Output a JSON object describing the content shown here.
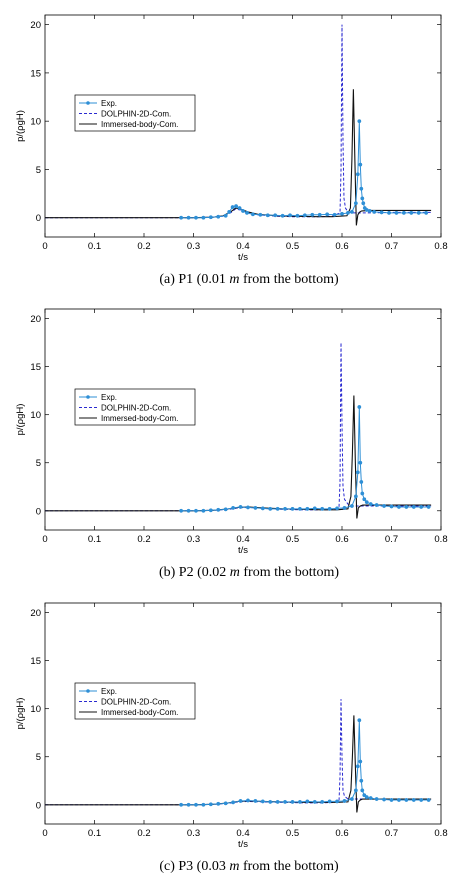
{
  "chart_data": [
    {
      "type": "line",
      "caption": "(a) P1 (0.01 m from the bottom)",
      "caption_parts": [
        "(a) P1 (0.01 ",
        "m",
        " from the bottom)"
      ],
      "xlabel": "t/s",
      "ylabel": "p/(ρgH)",
      "xlim": [
        0,
        0.8
      ],
      "ylim": [
        -2,
        21
      ],
      "xticks": [
        0,
        0.1,
        0.2,
        0.3,
        0.4,
        0.5,
        0.6,
        0.7,
        0.8
      ],
      "yticks": [
        0,
        5,
        10,
        15,
        20
      ],
      "grid": false,
      "legend": "upper-left",
      "series": [
        {
          "name": "Exp.",
          "style": "line-marker",
          "color": "#2e8fd6",
          "x": [
            0.275,
            0.29,
            0.305,
            0.32,
            0.335,
            0.35,
            0.365,
            0.372,
            0.379,
            0.386,
            0.393,
            0.4,
            0.408,
            0.42,
            0.435,
            0.45,
            0.465,
            0.48,
            0.495,
            0.51,
            0.525,
            0.54,
            0.555,
            0.57,
            0.585,
            0.6,
            0.612,
            0.62,
            0.628,
            0.632,
            0.635,
            0.637,
            0.639,
            0.641,
            0.643,
            0.646,
            0.65,
            0.656,
            0.665,
            0.68,
            0.695,
            0.71,
            0.725,
            0.74,
            0.755,
            0.77
          ],
          "y": [
            0,
            0,
            0,
            0,
            0.05,
            0.1,
            0.2,
            0.6,
            1.1,
            1.2,
            1.0,
            0.7,
            0.5,
            0.35,
            0.3,
            0.25,
            0.25,
            0.2,
            0.25,
            0.2,
            0.25,
            0.3,
            0.3,
            0.35,
            0.3,
            0.4,
            0.5,
            0.6,
            1.5,
            4.5,
            10.0,
            5.5,
            3.0,
            2.0,
            1.5,
            1.0,
            0.8,
            0.7,
            0.6,
            0.55,
            0.5,
            0.5,
            0.5,
            0.5,
            0.5,
            0.5
          ]
        },
        {
          "name": "DOLPHIN-2D-Com.",
          "style": "dashed",
          "color": "#2a2ad0",
          "x": [
            0.0,
            0.3,
            0.34,
            0.36,
            0.375,
            0.385,
            0.395,
            0.41,
            0.43,
            0.47,
            0.5,
            0.55,
            0.58,
            0.596,
            0.598,
            0.6,
            0.602,
            0.604,
            0.607,
            0.612,
            0.62,
            0.64,
            0.66,
            0.7,
            0.74,
            0.78
          ],
          "y": [
            0,
            0,
            0.05,
            0.15,
            0.5,
            0.9,
            0.8,
            0.5,
            0.3,
            0.15,
            0.1,
            0.1,
            0.15,
            0.5,
            5.0,
            20.0,
            8.0,
            2.0,
            1.0,
            0.6,
            0.5,
            0.5,
            0.5,
            0.55,
            0.55,
            0.55
          ]
        },
        {
          "name": "Immersed-body-Com.",
          "style": "solid",
          "color": "#111111",
          "x": [
            0.0,
            0.3,
            0.34,
            0.36,
            0.375,
            0.385,
            0.395,
            0.41,
            0.43,
            0.47,
            0.5,
            0.55,
            0.58,
            0.61,
            0.617,
            0.62,
            0.623,
            0.626,
            0.629,
            0.632,
            0.636,
            0.64,
            0.66,
            0.7,
            0.74,
            0.78
          ],
          "y": [
            0,
            0,
            0.05,
            0.2,
            0.6,
            1.0,
            0.9,
            0.6,
            0.35,
            0.2,
            0.15,
            0.1,
            0.1,
            0.2,
            1.0,
            6.0,
            13.3,
            6.0,
            -0.8,
            0.3,
            0.6,
            0.7,
            0.75,
            0.75,
            0.75,
            0.75
          ]
        }
      ]
    },
    {
      "type": "line",
      "caption": "(b) P2 (0.02 m from the bottom)",
      "caption_parts": [
        "(b) P2 (0.02 ",
        "m",
        " from the bottom)"
      ],
      "xlabel": "t/s",
      "ylabel": "p/(ρgH)",
      "xlim": [
        0,
        0.8
      ],
      "ylim": [
        -2,
        21
      ],
      "xticks": [
        0,
        0.1,
        0.2,
        0.3,
        0.4,
        0.5,
        0.6,
        0.7,
        0.8
      ],
      "yticks": [
        0,
        5,
        10,
        15,
        20
      ],
      "grid": false,
      "legend": "upper-left",
      "series": [
        {
          "name": "Exp.",
          "style": "line-marker",
          "color": "#2e8fd6",
          "x": [
            0.275,
            0.29,
            0.305,
            0.32,
            0.335,
            0.35,
            0.365,
            0.38,
            0.395,
            0.41,
            0.425,
            0.44,
            0.455,
            0.47,
            0.485,
            0.5,
            0.515,
            0.53,
            0.545,
            0.56,
            0.575,
            0.59,
            0.605,
            0.62,
            0.628,
            0.632,
            0.635,
            0.637,
            0.639,
            0.641,
            0.645,
            0.65,
            0.658,
            0.67,
            0.685,
            0.7,
            0.715,
            0.73,
            0.745,
            0.76,
            0.775
          ],
          "y": [
            0,
            0,
            0,
            0,
            0.05,
            0.1,
            0.15,
            0.3,
            0.4,
            0.35,
            0.3,
            0.25,
            0.2,
            0.2,
            0.2,
            0.2,
            0.2,
            0.2,
            0.25,
            0.2,
            0.2,
            0.25,
            0.3,
            0.5,
            1.5,
            4.0,
            10.8,
            5.0,
            3.0,
            1.8,
            1.2,
            0.9,
            0.7,
            0.6,
            0.5,
            0.45,
            0.4,
            0.4,
            0.4,
            0.4,
            0.4
          ]
        },
        {
          "name": "DOLPHIN-2D-Com.",
          "style": "dashed",
          "color": "#2a2ad0",
          "x": [
            0.0,
            0.3,
            0.34,
            0.37,
            0.39,
            0.41,
            0.44,
            0.48,
            0.52,
            0.56,
            0.585,
            0.594,
            0.596,
            0.598,
            0.6,
            0.602,
            0.605,
            0.612,
            0.62,
            0.64,
            0.66,
            0.7,
            0.74,
            0.78
          ],
          "y": [
            0,
            0,
            0.05,
            0.15,
            0.3,
            0.35,
            0.25,
            0.15,
            0.1,
            0.1,
            0.15,
            0.4,
            3.0,
            17.5,
            9.0,
            2.5,
            1.2,
            0.7,
            0.5,
            0.5,
            0.5,
            0.5,
            0.5,
            0.5
          ]
        },
        {
          "name": "Immersed-body-Com.",
          "style": "solid",
          "color": "#111111",
          "x": [
            0.0,
            0.3,
            0.34,
            0.37,
            0.39,
            0.41,
            0.44,
            0.48,
            0.52,
            0.56,
            0.59,
            0.612,
            0.618,
            0.621,
            0.624,
            0.627,
            0.63,
            0.633,
            0.637,
            0.642,
            0.66,
            0.7,
            0.74,
            0.78
          ],
          "y": [
            0,
            0,
            0.05,
            0.2,
            0.35,
            0.4,
            0.3,
            0.2,
            0.15,
            0.1,
            0.1,
            0.2,
            1.5,
            6.0,
            12.0,
            5.0,
            -0.8,
            0.3,
            0.5,
            0.6,
            0.6,
            0.6,
            0.6,
            0.6
          ]
        }
      ]
    },
    {
      "type": "line",
      "caption": "(c) P3 (0.03 m from the bottom)",
      "caption_parts": [
        "(c) P3 (0.03 ",
        "m",
        " from the bottom)"
      ],
      "xlabel": "t/s",
      "ylabel": "p/(ρgH)",
      "xlim": [
        0,
        0.8
      ],
      "ylim": [
        -2,
        21
      ],
      "xticks": [
        0,
        0.1,
        0.2,
        0.3,
        0.4,
        0.5,
        0.6,
        0.7,
        0.8
      ],
      "yticks": [
        0,
        5,
        10,
        15,
        20
      ],
      "grid": false,
      "legend": "upper-left",
      "series": [
        {
          "name": "Exp.",
          "style": "line-marker",
          "color": "#2e8fd6",
          "x": [
            0.275,
            0.29,
            0.305,
            0.32,
            0.335,
            0.35,
            0.365,
            0.38,
            0.395,
            0.41,
            0.425,
            0.44,
            0.455,
            0.47,
            0.485,
            0.5,
            0.515,
            0.53,
            0.545,
            0.56,
            0.575,
            0.59,
            0.605,
            0.62,
            0.628,
            0.632,
            0.635,
            0.637,
            0.639,
            0.641,
            0.645,
            0.65,
            0.658,
            0.67,
            0.685,
            0.7,
            0.715,
            0.73,
            0.745,
            0.76,
            0.775
          ],
          "y": [
            0,
            0,
            0,
            0,
            0.05,
            0.1,
            0.15,
            0.25,
            0.4,
            0.45,
            0.4,
            0.35,
            0.3,
            0.3,
            0.3,
            0.3,
            0.3,
            0.35,
            0.3,
            0.3,
            0.35,
            0.35,
            0.4,
            0.6,
            1.5,
            4.0,
            8.8,
            4.5,
            2.5,
            1.5,
            1.0,
            0.8,
            0.7,
            0.6,
            0.55,
            0.5,
            0.5,
            0.5,
            0.5,
            0.5,
            0.5
          ]
        },
        {
          "name": "DOLPHIN-2D-Com.",
          "style": "dashed",
          "color": "#2a2ad0",
          "x": [
            0.0,
            0.3,
            0.34,
            0.37,
            0.39,
            0.41,
            0.44,
            0.48,
            0.52,
            0.56,
            0.585,
            0.594,
            0.596,
            0.598,
            0.6,
            0.602,
            0.605,
            0.612,
            0.62,
            0.64,
            0.66,
            0.7,
            0.74,
            0.78
          ],
          "y": [
            0,
            0,
            0.05,
            0.15,
            0.3,
            0.35,
            0.3,
            0.25,
            0.2,
            0.2,
            0.25,
            0.4,
            3.0,
            11.0,
            5.0,
            1.5,
            0.9,
            0.6,
            0.6,
            0.6,
            0.6,
            0.6,
            0.6,
            0.6
          ]
        },
        {
          "name": "Immersed-body-Com.",
          "style": "solid",
          "color": "#111111",
          "x": [
            0.0,
            0.3,
            0.34,
            0.37,
            0.39,
            0.41,
            0.44,
            0.48,
            0.52,
            0.56,
            0.59,
            0.612,
            0.618,
            0.621,
            0.624,
            0.627,
            0.63,
            0.633,
            0.637,
            0.642,
            0.66,
            0.7,
            0.74,
            0.78
          ],
          "y": [
            0,
            0,
            0.05,
            0.2,
            0.35,
            0.4,
            0.35,
            0.3,
            0.25,
            0.25,
            0.25,
            0.3,
            1.5,
            5.0,
            9.3,
            4.0,
            -0.8,
            0.3,
            0.5,
            0.6,
            0.6,
            0.6,
            0.6,
            0.6
          ]
        }
      ]
    }
  ]
}
